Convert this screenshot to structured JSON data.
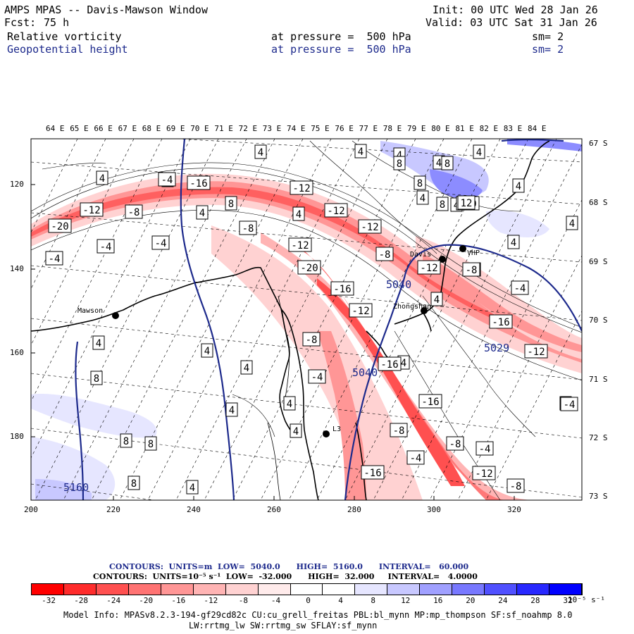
{
  "header": {
    "title": "AMPS MPAS -- Davis-Mawson Window",
    "init": "Init: 00 UTC Wed 28 Jan 26",
    "fcst_label": "Fcst:",
    "fcst_value": "75 h",
    "valid": "Valid: 03 UTC Sat 31 Jan 26",
    "field1": {
      "name": "Relative vorticity",
      "level": "at pressure =  500 hPa",
      "smooth": "sm= 2"
    },
    "field2": {
      "name": "Geopotential height",
      "level": "at pressure =  500 hPa",
      "smooth": "sm= 2"
    }
  },
  "map": {
    "lon_labels": [
      "64 E",
      "65 E",
      "66 E",
      "67 E",
      "68 E",
      "69 E",
      "70 E",
      "71 E",
      "72 E",
      "73 E",
      "74 E",
      "75 E",
      "76 E",
      "77 E",
      "78 E",
      "79 E",
      "80 E",
      "81 E",
      "82 E",
      "83 E",
      "84 E"
    ],
    "lat_labels": [
      "67 S",
      "68 S",
      "69 S",
      "70 S",
      "71 S",
      "72 S",
      "73 S"
    ],
    "x_ticks": [
      "200",
      "220",
      "240",
      "260",
      "280",
      "300",
      "320"
    ],
    "y_ticks": [
      "120",
      "140",
      "160",
      "180"
    ],
    "places": [
      {
        "name": "Mawson"
      },
      {
        "name": "Davis"
      },
      {
        "name": "Zhongshan"
      },
      {
        "name": "VHP"
      },
      {
        "name": "L3"
      }
    ],
    "height_labels": [
      "5040",
      "5040",
      "5029",
      "5160"
    ],
    "vort_labels": [
      "4",
      "4",
      "4",
      "4",
      "4",
      "4",
      "4",
      "4",
      "4",
      "4",
      "4",
      "4",
      "4",
      "4",
      "4",
      "4",
      "4",
      "4",
      "4",
      "4",
      "4",
      "4",
      "4",
      "4",
      "8",
      "8",
      "8",
      "8",
      "8",
      "8",
      "8",
      "8",
      "8",
      "-4",
      "-4",
      "-4",
      "-4",
      "-4",
      "-4",
      "-4",
      "-4",
      "-4",
      "-4",
      "-8",
      "-8",
      "-8",
      "-8",
      "-8",
      "-8",
      "-8",
      "-8",
      "-12",
      "-12",
      "-12",
      "-12",
      "-12",
      "-12",
      "-12",
      "-12",
      "-12",
      "-16",
      "-16",
      "-16",
      "-16",
      "-16",
      "-16",
      "-20",
      "-20",
      "-20",
      "12"
    ]
  },
  "contour_info": {
    "line1": "CONTOURS:  UNITS=m  LOW=  5040.0      HIGH=  5160.0      INTERVAL=   60.000",
    "line2": "CONTOURS:  UNITS=10⁻⁵ s⁻¹  LOW=  -32.000      HIGH=  32.000     INTERVAL=   4.0000"
  },
  "colorbar": {
    "colors": [
      "#ff0000",
      "#ff2c2c",
      "#ff5050",
      "#ff7373",
      "#ff9696",
      "#ffb4b4",
      "#ffd2d2",
      "#ffebeb",
      "#ffffff",
      "#ffffff",
      "#e6e6ff",
      "#c8c8ff",
      "#a0a0ff",
      "#7878ff",
      "#5050ff",
      "#2828ff",
      "#0000ff"
    ],
    "labels": [
      "-32",
      "-28",
      "-24",
      "-20",
      "-16",
      "-12",
      "-8",
      "-4",
      "0",
      "4",
      "8",
      "12",
      "16",
      "20",
      "24",
      "28",
      "32"
    ],
    "unit": "10⁻⁵ s⁻¹"
  },
  "model_info": {
    "line1": "Model Info: MPASv8.2.3-194-gf29cd82c CU:cu_grell_freitas PBL:bl_mynn MP:mp_thompson SF:sf_noahmp 8.0",
    "line2": "LW:rrtmg_lw SW:rrtmg_sw SFLAY:sf_mynn"
  }
}
